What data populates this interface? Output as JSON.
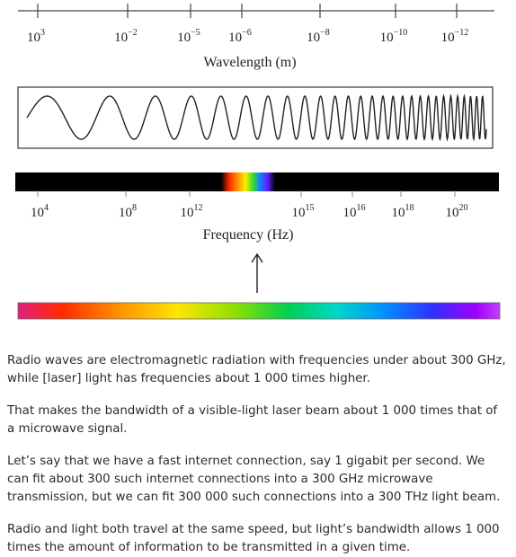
{
  "wavelength_axis": {
    "label": "Wavelength (m)",
    "ticks": [
      {
        "base": "10",
        "exp": "3"
      },
      {
        "base": "10",
        "exp": "−2"
      },
      {
        "base": "10",
        "exp": "−5"
      },
      {
        "base": "10",
        "exp": "−6"
      },
      {
        "base": "10",
        "exp": "−8"
      },
      {
        "base": "10",
        "exp": "−10"
      },
      {
        "base": "10",
        "exp": "−12"
      }
    ]
  },
  "frequency_axis": {
    "label": "Frequency (Hz)",
    "ticks": [
      {
        "base": "10",
        "exp": "4"
      },
      {
        "base": "10",
        "exp": "8"
      },
      {
        "base": "10",
        "exp": "12"
      },
      {
        "base": "10",
        "exp": "15"
      },
      {
        "base": "10",
        "exp": "16"
      },
      {
        "base": "10",
        "exp": "18"
      },
      {
        "base": "10",
        "exp": "20"
      }
    ]
  },
  "icons": {
    "wave": "sine-wave-icon",
    "arrow": "arrow-up-icon"
  },
  "colors": {
    "spectrum_bar": "#000000",
    "visible_stops": [
      "#e0207a",
      "#ff2a00",
      "#ff8a00",
      "#ffe600",
      "#8fe000",
      "#00d050",
      "#00d8c8",
      "#0090ff",
      "#3030ff",
      "#a000ff",
      "#c040ff"
    ]
  },
  "paragraphs": [
    "Radio waves are electromagnetic radiation with frequencies under about 300 GHz, while [laser] light has frequencies about 1 000 times higher.",
    "That makes the bandwidth of a visible-light laser beam about 1 000 times that of a microwave signal.",
    "Let’s say that we have a fast internet connection, say 1 gigabit per second. We can fit about 300 such internet connections into a 300 GHz microwave transmission, but we can fit 300 000 such connections into a 300 THz light beam.",
    "Radio and light both travel at the same speed, but light’s bandwidth allows 1 000 times the amount of information to be transmitted in a given time."
  ]
}
